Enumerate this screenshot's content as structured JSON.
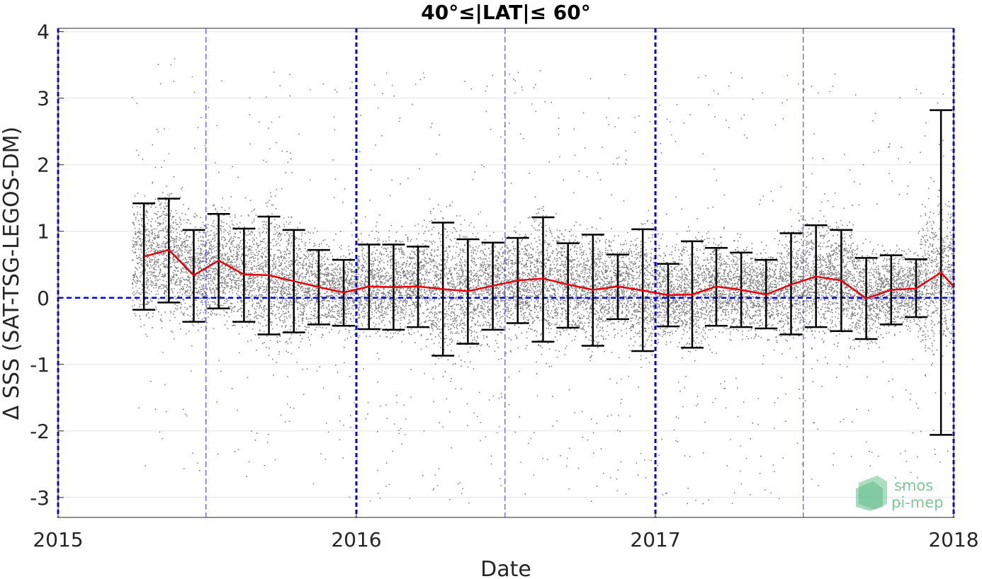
{
  "chart_data": {
    "type": "scatter",
    "title": "40°≤|LAT|≤ 60°",
    "xlabel": "Date",
    "ylabel": "Δ SSS (SAT-TSG-LEGOS-DM)",
    "xlim": [
      "2015-01-01",
      "2018-01-01"
    ],
    "ylim": [
      -3.3,
      4.05
    ],
    "x_ticks": [
      "2015",
      "2016",
      "2017",
      "2018"
    ],
    "y_ticks": [
      -3,
      -2,
      -1,
      0,
      1,
      2,
      3,
      4
    ],
    "grid": true,
    "zero_line": 0,
    "series": [
      {
        "kind": "scatter",
        "description": "individual SSS differences",
        "color": "#7f7f7f"
      },
      {
        "kind": "line-with-errorbars",
        "description": "monthly mean ± std",
        "color": "#e8000b",
        "errorbar_color": "#000000",
        "points": [
          {
            "date": "2015-04",
            "mean": 0.62,
            "low": -0.18,
            "high": 1.42
          },
          {
            "date": "2015-05",
            "mean": 0.72,
            "low": -0.07,
            "high": 1.49
          },
          {
            "date": "2015-06",
            "mean": 0.34,
            "low": -0.36,
            "high": 1.02
          },
          {
            "date": "2015-07",
            "mean": 0.56,
            "low": -0.16,
            "high": 1.26
          },
          {
            "date": "2015-08",
            "mean": 0.35,
            "low": -0.36,
            "high": 1.04
          },
          {
            "date": "2015-09",
            "mean": 0.34,
            "low": -0.55,
            "high": 1.22
          },
          {
            "date": "2015-10",
            "mean": 0.25,
            "low": -0.52,
            "high": 1.02
          },
          {
            "date": "2015-11",
            "mean": 0.16,
            "low": -0.4,
            "high": 0.72
          },
          {
            "date": "2015-12",
            "mean": 0.08,
            "low": -0.42,
            "high": 0.57
          },
          {
            "date": "2016-01",
            "mean": 0.17,
            "low": -0.47,
            "high": 0.8
          },
          {
            "date": "2016-02",
            "mean": 0.16,
            "low": -0.48,
            "high": 0.8
          },
          {
            "date": "2016-03",
            "mean": 0.17,
            "low": -0.44,
            "high": 0.77
          },
          {
            "date": "2016-04",
            "mean": 0.13,
            "low": -0.87,
            "high": 1.13
          },
          {
            "date": "2016-05",
            "mean": 0.1,
            "low": -0.69,
            "high": 0.88
          },
          {
            "date": "2016-06",
            "mean": 0.18,
            "low": -0.48,
            "high": 0.83
          },
          {
            "date": "2016-07",
            "mean": 0.26,
            "low": -0.38,
            "high": 0.9
          },
          {
            "date": "2016-08",
            "mean": 0.29,
            "low": -0.66,
            "high": 1.21
          },
          {
            "date": "2016-09",
            "mean": 0.2,
            "low": -0.45,
            "high": 0.82
          },
          {
            "date": "2016-10",
            "mean": 0.12,
            "low": -0.72,
            "high": 0.95
          },
          {
            "date": "2016-11",
            "mean": 0.17,
            "low": -0.32,
            "high": 0.65
          },
          {
            "date": "2016-12",
            "mean": 0.11,
            "low": -0.8,
            "high": 1.03
          },
          {
            "date": "2017-01",
            "mean": 0.04,
            "low": -0.43,
            "high": 0.51
          },
          {
            "date": "2017-02",
            "mean": 0.05,
            "low": -0.75,
            "high": 0.85
          },
          {
            "date": "2017-03",
            "mean": 0.17,
            "low": -0.42,
            "high": 0.75
          },
          {
            "date": "2017-04",
            "mean": 0.12,
            "low": -0.44,
            "high": 0.68
          },
          {
            "date": "2017-05",
            "mean": 0.05,
            "low": -0.46,
            "high": 0.57
          },
          {
            "date": "2017-06",
            "mean": 0.2,
            "low": -0.55,
            "high": 0.97
          },
          {
            "date": "2017-07",
            "mean": 0.32,
            "low": -0.44,
            "high": 1.09
          },
          {
            "date": "2017-08",
            "mean": 0.26,
            "low": -0.5,
            "high": 1.02
          },
          {
            "date": "2017-09",
            "mean": -0.01,
            "low": -0.62,
            "high": 0.6
          },
          {
            "date": "2017-10",
            "mean": 0.12,
            "low": -0.4,
            "high": 0.64
          },
          {
            "date": "2017-11",
            "mean": 0.14,
            "low": -0.29,
            "high": 0.58
          },
          {
            "date": "2017-12",
            "mean": 0.38,
            "low": -2.06,
            "high": 2.82
          },
          {
            "date": "2018-01",
            "mean": 0.17
          }
        ]
      }
    ],
    "logo": "smos pi-mep",
    "logo_line1": "smos",
    "logo_line2": "pi-mep"
  }
}
